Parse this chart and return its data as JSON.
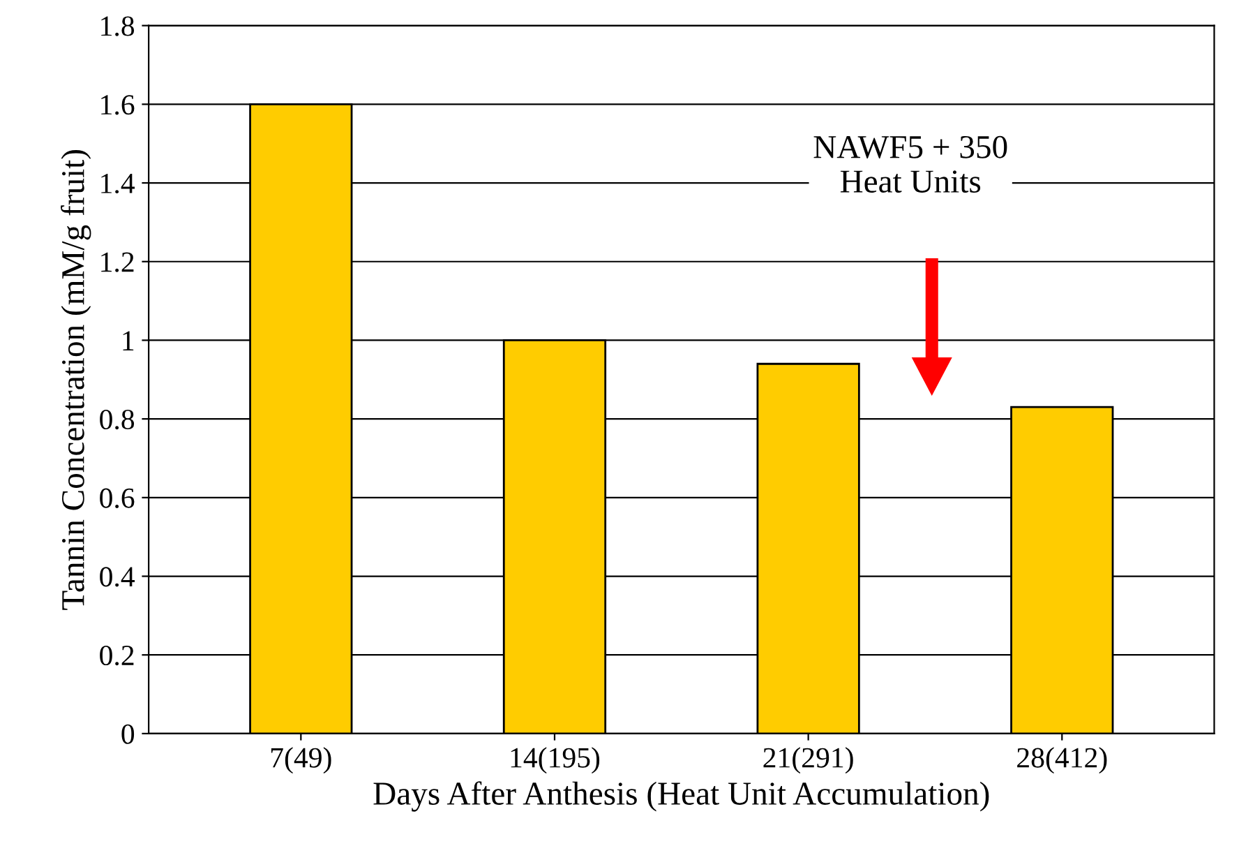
{
  "chart_data": {
    "type": "bar",
    "xlabel": "Days After Anthesis (Heat Unit Accumulation)",
    "ylabel": "Tannin Concentration (mM/g fruit)",
    "categories": [
      "7(49)",
      "14(195)",
      "21(291)",
      "28(412)"
    ],
    "values": [
      1.6,
      1.0,
      0.94,
      0.83
    ],
    "color": "#ffcc00",
    "ylim": [
      0,
      1.8
    ],
    "yticks": [
      0,
      0.2,
      0.4,
      0.6,
      0.8,
      1,
      1.2,
      1.4,
      1.6,
      1.8
    ],
    "grid": "y",
    "annotations": [
      "NAWF5 + 350\nHeat Units"
    ]
  }
}
